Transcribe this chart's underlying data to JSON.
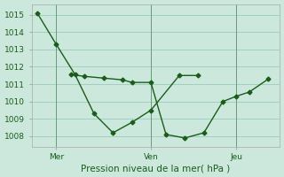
{
  "xlabel": "Pression niveau de la mer( hPa )",
  "background_color": "#cce8dc",
  "grid_color": "#99ccbb",
  "line_color": "#1a5c1a",
  "marker_color": "#1a5c1a",
  "ylim": [
    1007.4,
    1015.6
  ],
  "yticks": [
    1008,
    1009,
    1010,
    1011,
    1012,
    1013,
    1014,
    1015
  ],
  "xlim": [
    -0.3,
    12.8
  ],
  "series1_x": [
    0.0,
    1.0,
    2.0,
    3.0,
    4.0,
    5.0,
    6.0,
    7.5,
    8.5
  ],
  "series1_y": [
    1015.1,
    1013.3,
    1011.55,
    1009.3,
    1008.2,
    1008.8,
    1009.5,
    1011.5,
    1011.5
  ],
  "series2_x": [
    1.8,
    2.5,
    3.5,
    4.5,
    5.0,
    6.0,
    6.8,
    7.8,
    8.8,
    9.8,
    10.5,
    11.2,
    12.2
  ],
  "series2_y": [
    1011.55,
    1011.45,
    1011.35,
    1011.25,
    1011.1,
    1011.1,
    1008.1,
    1007.9,
    1008.2,
    1010.0,
    1010.3,
    1010.55,
    1011.3
  ],
  "xtick_positions": [
    1.0,
    6.0,
    10.5
  ],
  "xtick_labels": [
    "Mer",
    "Ven",
    "Jeu"
  ],
  "vlines_x": [
    1.0,
    6.0,
    10.5
  ],
  "xlabel_fontsize": 7.5,
  "tick_labelsize": 6.5
}
